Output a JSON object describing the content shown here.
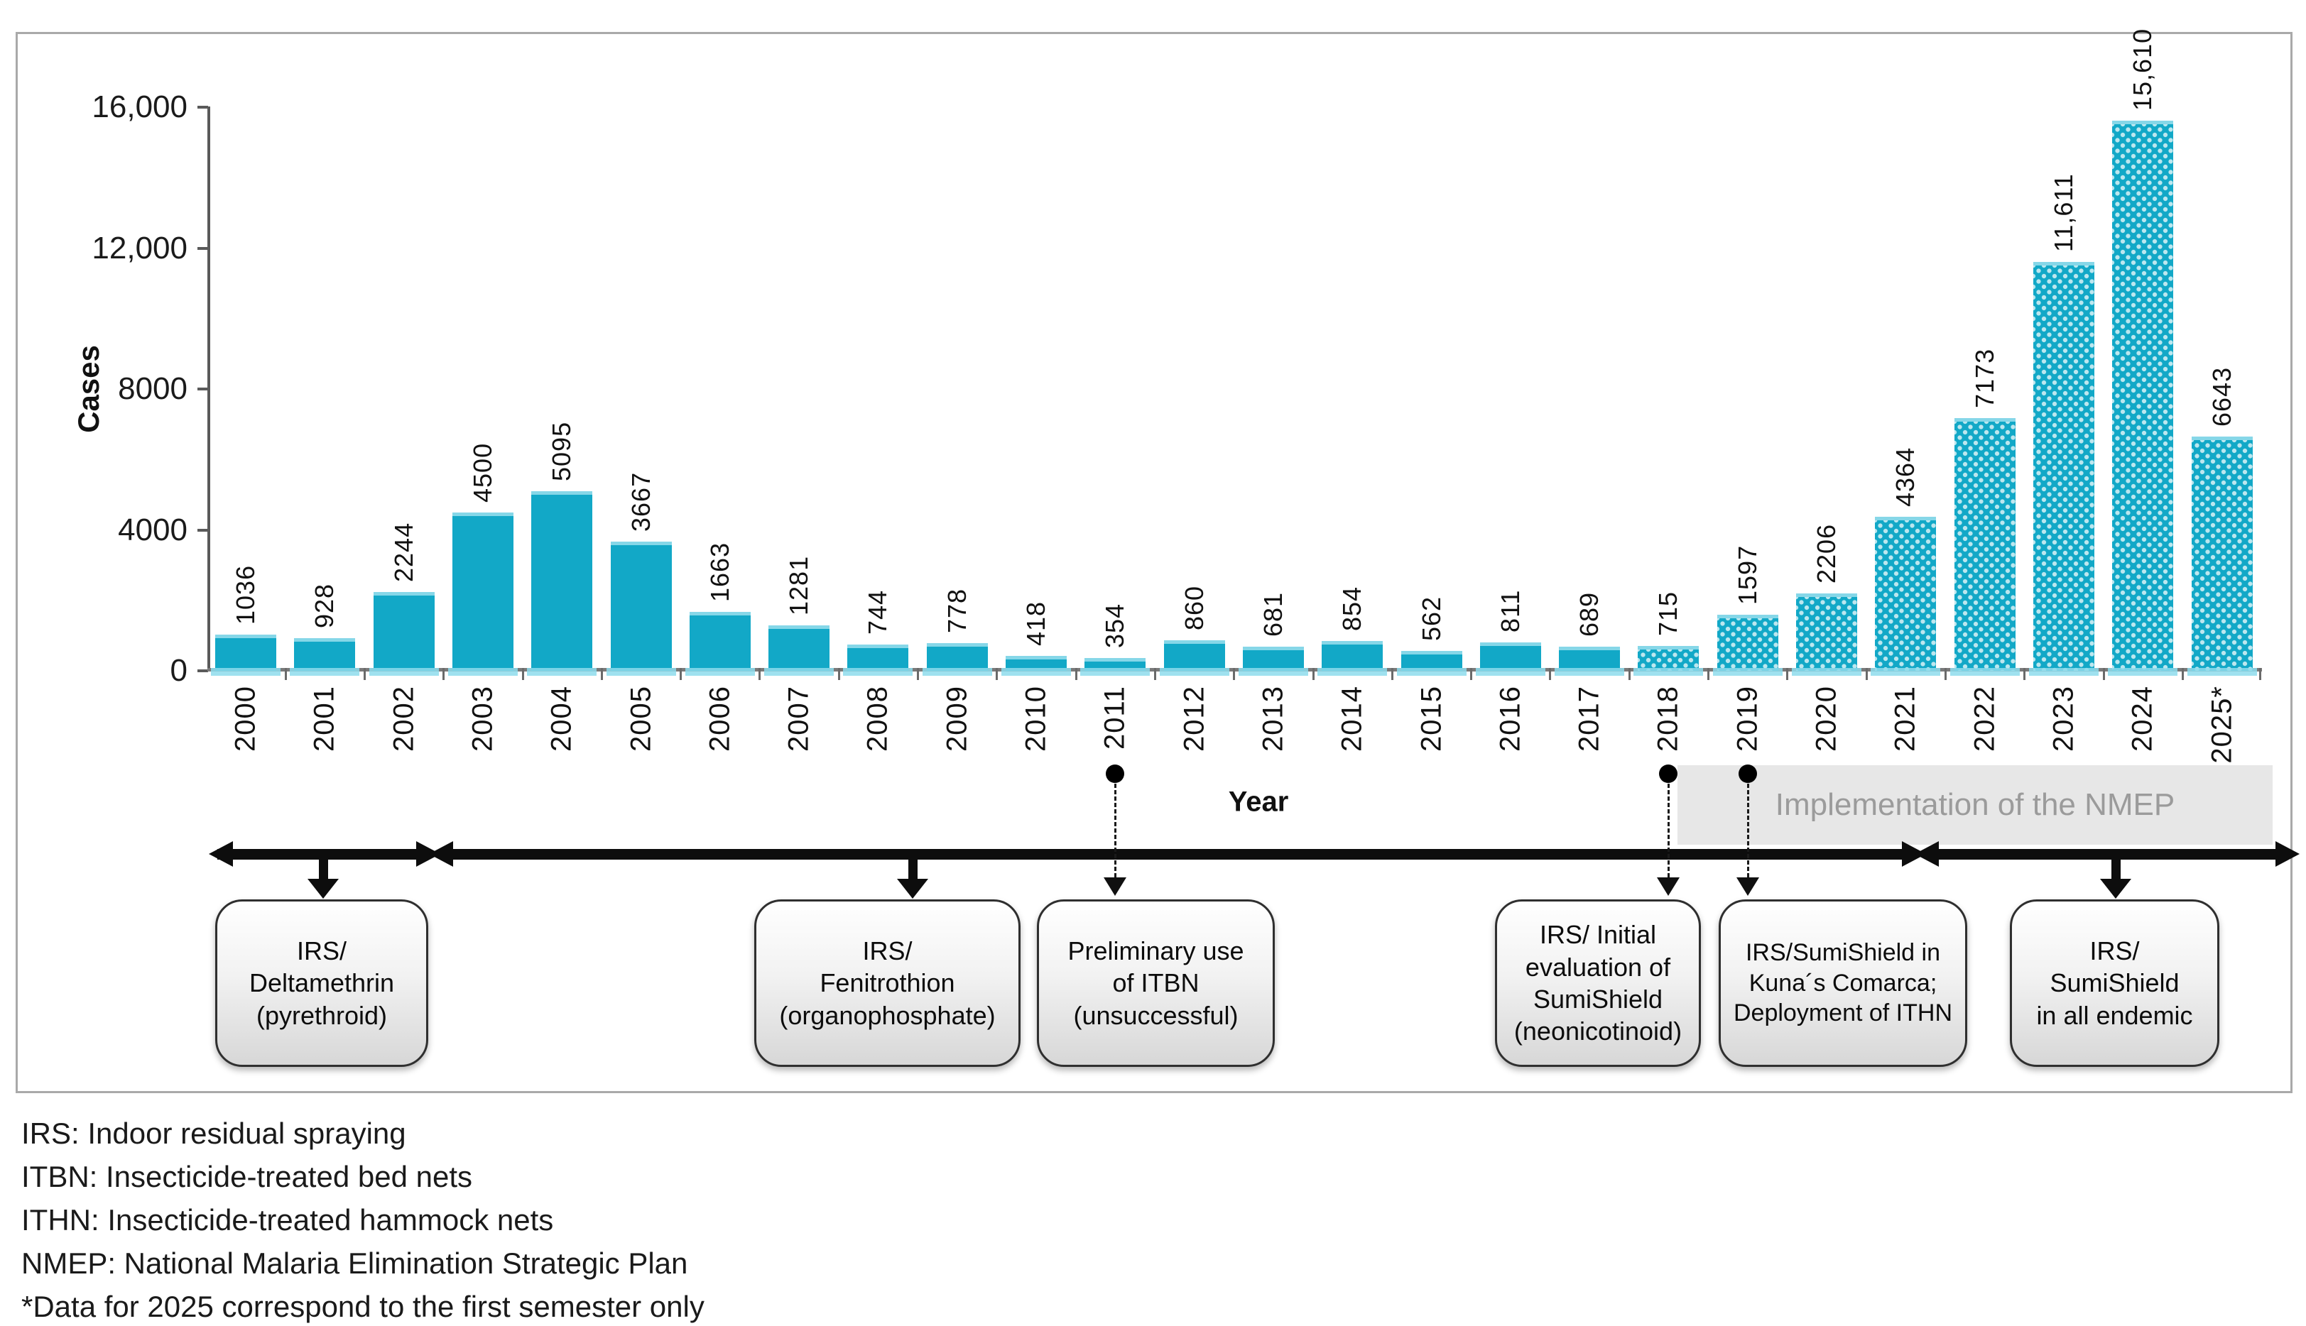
{
  "chart_data": {
    "type": "bar",
    "title": "",
    "xlabel": "Year",
    "ylabel": "Cases",
    "ylim": [
      0,
      16000
    ],
    "grid": "off",
    "legend": "none",
    "bar_color": "#12a8c7",
    "dotted_pattern_note": "bars from 2018 onward use a white-dot fill pattern",
    "ytick_values": [
      0,
      4000,
      8000,
      12000,
      16000
    ],
    "ytick_labels": [
      "0",
      "4000",
      "8000",
      "12,000",
      "16,000"
    ],
    "categories": [
      "2000",
      "2001",
      "2002",
      "2003",
      "2004",
      "2005",
      "2006",
      "2007",
      "2008",
      "2009",
      "2010",
      "2011",
      "2012",
      "2013",
      "2014",
      "2015",
      "2016",
      "2017",
      "2018",
      "2019",
      "2020",
      "2021",
      "2022",
      "2023",
      "2024",
      "2025*"
    ],
    "values": [
      1036,
      928,
      2244,
      4500,
      5095,
      3667,
      1663,
      1281,
      744,
      778,
      418,
      354,
      860,
      681,
      854,
      562,
      811,
      689,
      715,
      1597,
      2206,
      4364,
      7173,
      11611,
      15610,
      6643
    ],
    "value_labels": [
      "1036",
      "928",
      "2244",
      "4500",
      "5095",
      "3667",
      "1663",
      "1281",
      "744",
      "778",
      "418",
      "354",
      "860",
      "681",
      "854",
      "562",
      "811",
      "689",
      "715",
      "1597",
      "2206",
      "4364",
      "7173",
      "11,611",
      "15,610",
      "6643"
    ],
    "dotted_from_index": 18
  },
  "timeline": {
    "nmep_label": "Implementation of the NMEP",
    "nmep_band_color": "#e7e7e7",
    "nmep_text_color": "#9b9b9b",
    "boxes": [
      {
        "id": "deltamethrin",
        "connector": "solid-arrow",
        "anchor_year": "",
        "lines": [
          "IRS/",
          "Deltamethrin",
          "(pyrethroid)"
        ]
      },
      {
        "id": "fenitrothion",
        "connector": "solid-arrow",
        "anchor_year": "",
        "lines": [
          "IRS/",
          "Fenitrothion",
          "(organophosphate)"
        ]
      },
      {
        "id": "itbn",
        "connector": "dashed-arrow",
        "anchor_year": "2011",
        "lines": [
          "Preliminary use",
          "of ITBN",
          "(unsuccessful)"
        ]
      },
      {
        "id": "sumishield-eval",
        "connector": "dashed-arrow",
        "anchor_year": "2018",
        "lines": [
          "IRS/ Initial",
          "evaluation of",
          "SumiShield",
          "(neonicotinoid)"
        ]
      },
      {
        "id": "sumishield-kuna",
        "connector": "dashed-arrow",
        "anchor_year": "2019",
        "lines": [
          "IRS/SumiShield in",
          "Kuna´s Comarca;",
          "Deployment of ITHN"
        ]
      },
      {
        "id": "sumishield-endemic",
        "connector": "solid-arrow",
        "anchor_year": "",
        "lines": [
          "IRS/",
          "SumiShield",
          "in all endemic"
        ]
      }
    ]
  },
  "footnotes": [
    "IRS: Indoor residual spraying",
    "ITBN: Insecticide-treated bed nets",
    "ITHN: Insecticide-treated hammock nets",
    "NMEP: National Malaria Elimination Strategic Plan",
    "*Data for 2025 correspond to the first semester only"
  ]
}
